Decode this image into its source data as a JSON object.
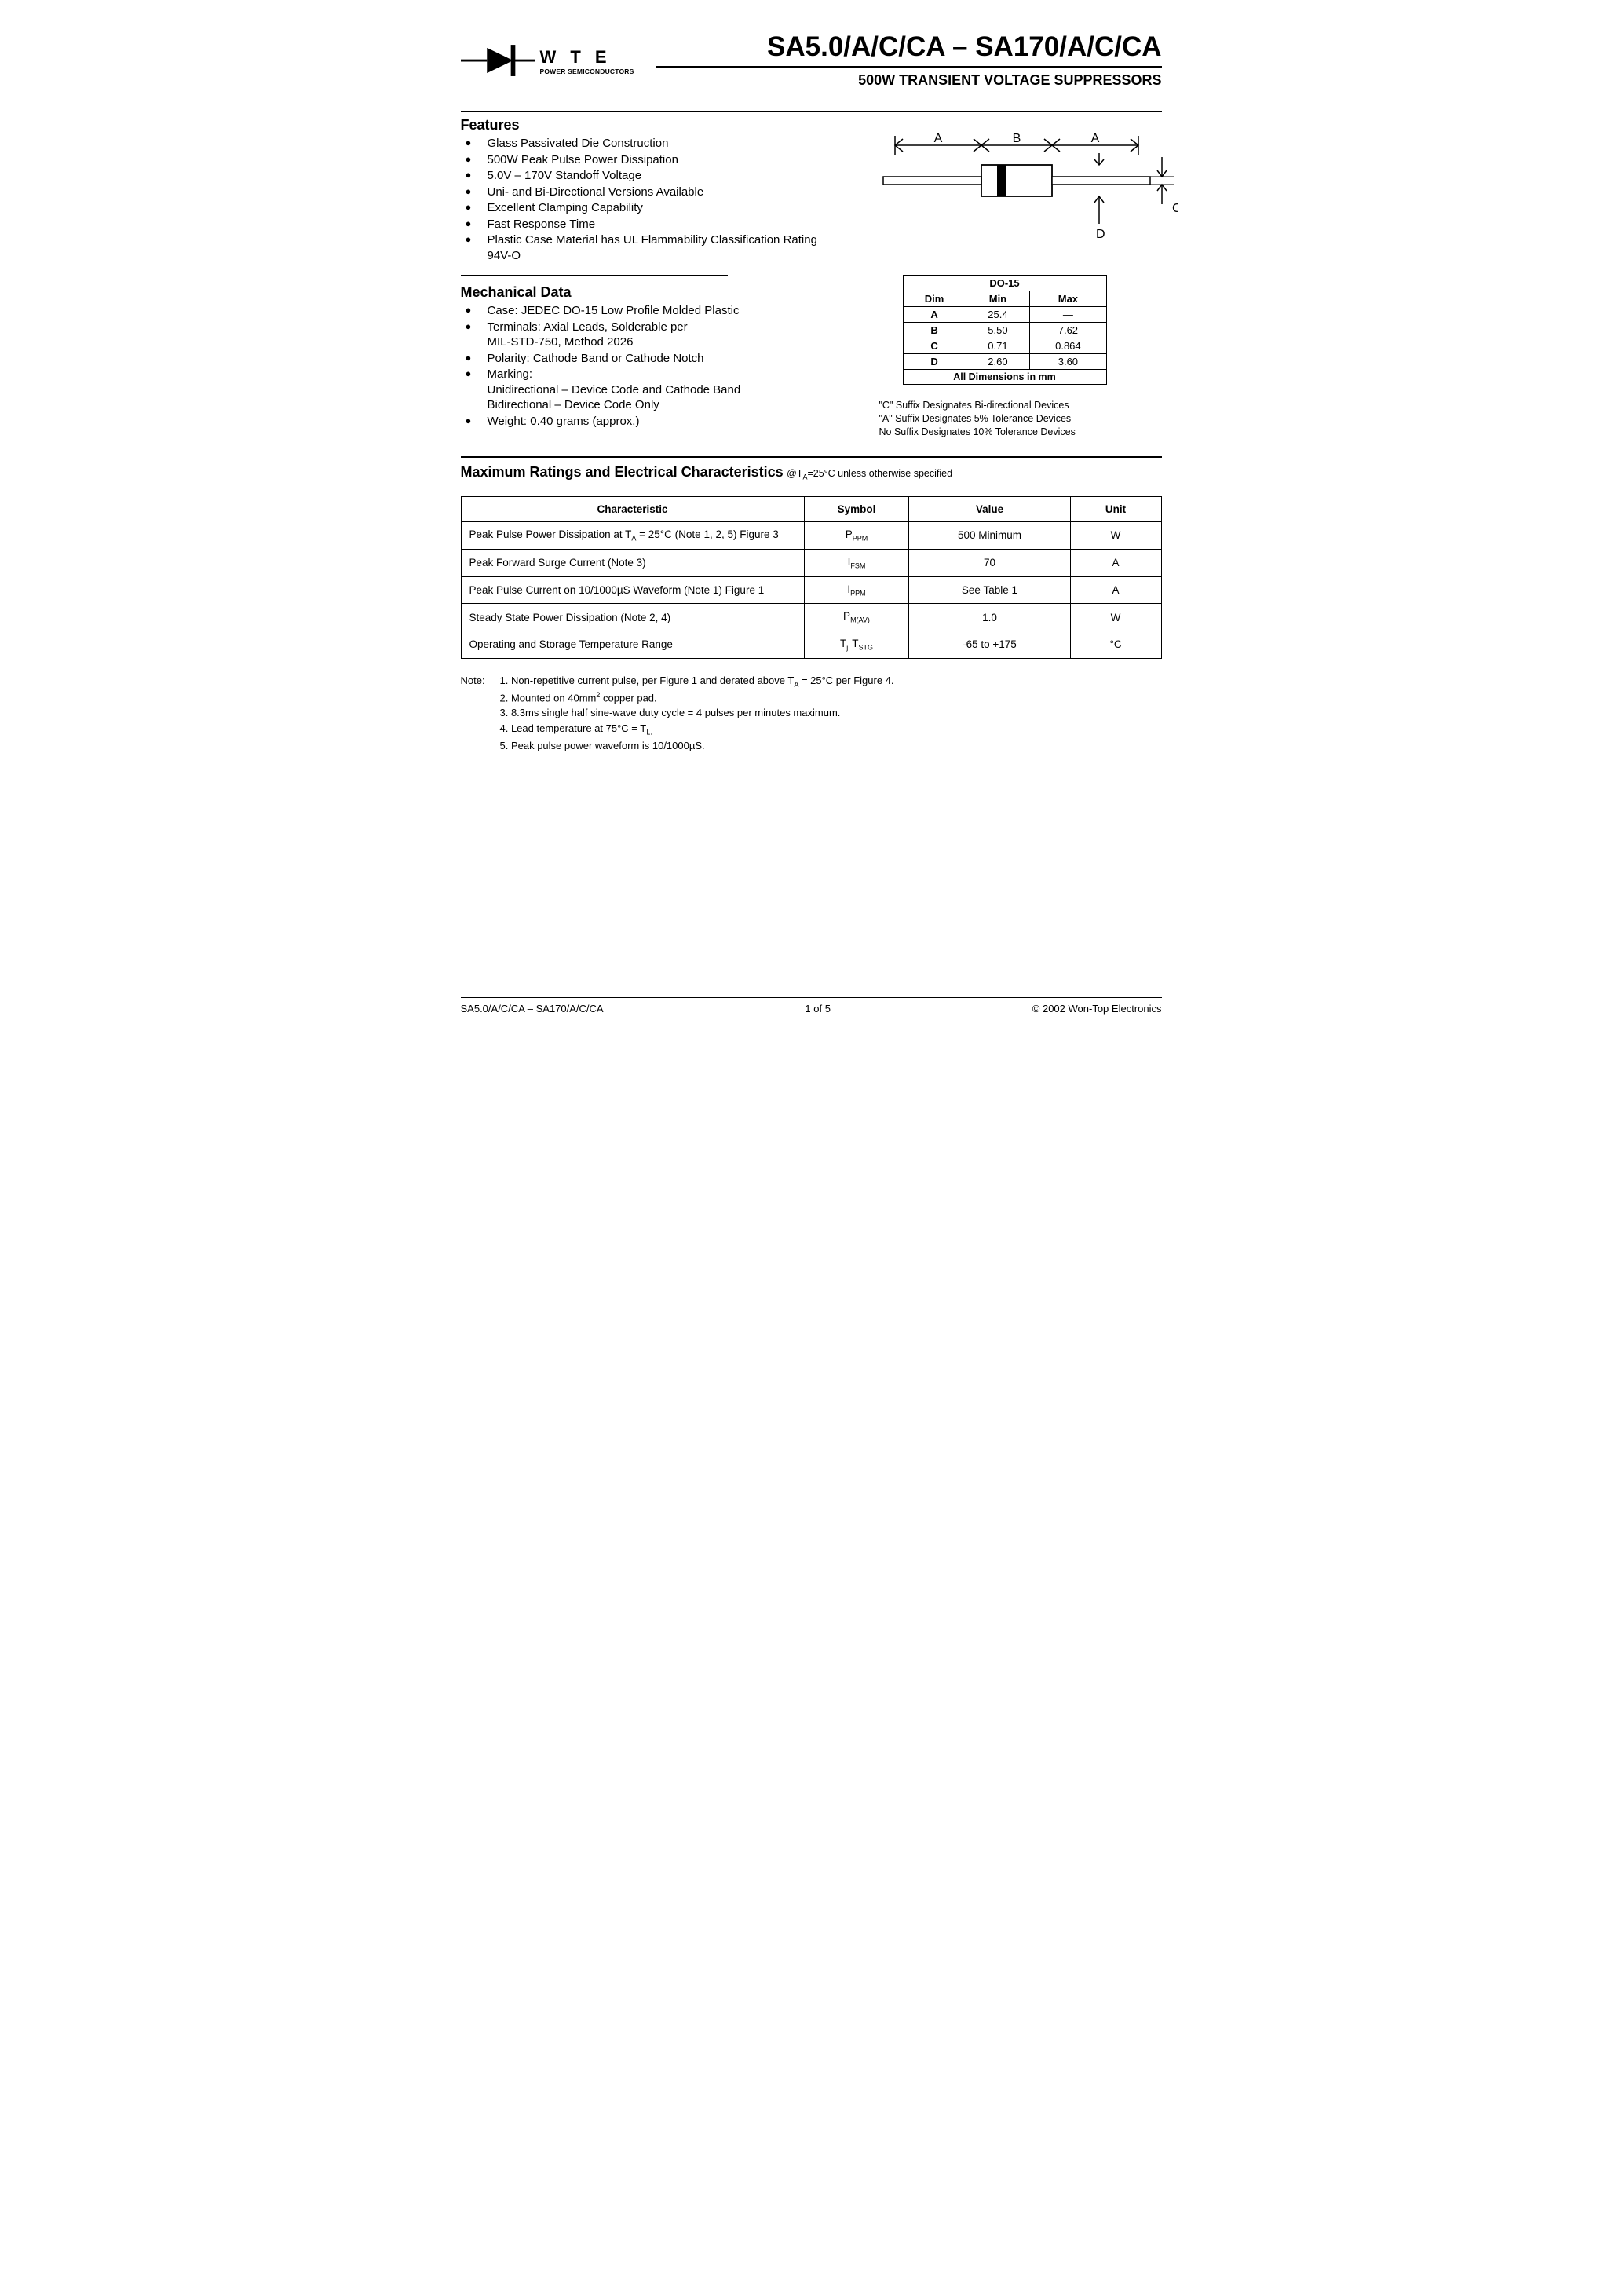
{
  "logo": {
    "wte": "W T E",
    "sub": "POWER SEMICONDUCTORS"
  },
  "title": "SA5.0/A/C/CA – SA170/A/C/CA",
  "subtitle": "500W TRANSIENT VOLTAGE SUPPRESSORS",
  "features": {
    "heading": "Features",
    "items": [
      "Glass Passivated Die Construction",
      "500W Peak Pulse Power Dissipation",
      "5.0V – 170V Standoff Voltage",
      "Uni- and Bi-Directional Versions Available",
      "Excellent Clamping Capability",
      "Fast Response Time",
      "Plastic Case Material has UL Flammability Classification Rating 94V-O"
    ]
  },
  "mechanical": {
    "heading": "Mechanical Data",
    "items": [
      "Case: JEDEC DO-15 Low Profile Molded Plastic",
      "Terminals: Axial Leads, Solderable per MIL-STD-750, Method 2026",
      "Polarity: Cathode Band or Cathode Notch",
      "Marking: Unidirectional – Device Code and Cathode Band Bidirectional – Device Code Only",
      "Weight: 0.40 grams (approx.)"
    ]
  },
  "package_diagram": {
    "labels": {
      "A": "A",
      "B": "B",
      "C": "C",
      "D": "D"
    },
    "stroke": "#000000",
    "fill_band": "#000000",
    "body_fill": "#ffffff"
  },
  "dim_table": {
    "title": "DO-15",
    "cols": [
      "Dim",
      "Min",
      "Max"
    ],
    "rows": [
      [
        "A",
        "25.4",
        "—"
      ],
      [
        "B",
        "5.50",
        "7.62"
      ],
      [
        "C",
        "0.71",
        "0.864"
      ],
      [
        "D",
        "2.60",
        "3.60"
      ]
    ],
    "footer": "All Dimensions in mm"
  },
  "suffix_notes": [
    "\"C\" Suffix Designates Bi-directional Devices",
    "\"A\" Suffix Designates 5% Tolerance Devices",
    "No Suffix Designates 10% Tolerance Devices"
  ],
  "maxratings": {
    "heading": "Maximum Ratings and Electrical Characteristics",
    "condition_prefix": " @T",
    "condition_sub": "A",
    "condition_rest": "=25°C unless otherwise specified",
    "cols": [
      "Characteristic",
      "Symbol",
      "Value",
      "Unit"
    ],
    "rows": [
      {
        "char": "Peak Pulse Power Dissipation at T",
        "char_sub": "A",
        "char_rest": " = 25°C (Note 1, 2, 5) Figure 3",
        "sym": "P",
        "sym_sub": "PPM",
        "val": "500 Minimum",
        "unit": "W"
      },
      {
        "char": "Peak Forward Surge Current (Note 3)",
        "char_sub": "",
        "char_rest": "",
        "sym": "I",
        "sym_sub": "FSM",
        "val": "70",
        "unit": "A"
      },
      {
        "char": "Peak Pulse Current on 10/1000µS Waveform (Note 1) Figure 1",
        "char_sub": "",
        "char_rest": "",
        "sym": "I",
        "sym_sub": "PPM",
        "val": "See Table 1",
        "unit": "A"
      },
      {
        "char": "Steady State Power Dissipation (Note 2, 4)",
        "char_sub": "",
        "char_rest": "",
        "sym": "P",
        "sym_sub": "M(AV)",
        "val": "1.0",
        "unit": "W"
      },
      {
        "char": "Operating and Storage Temperature Range",
        "char_sub": "",
        "char_rest": "",
        "sym": "T",
        "sym_sub": "j, ",
        "sym2": "T",
        "sym2_sub": "STG",
        "val": "-65 to +175",
        "unit": "°C"
      }
    ]
  },
  "notes": {
    "label": "Note:",
    "items": [
      {
        "n": "1.",
        "pre": "Non-repetitive current pulse, per Figure 1 and derated above T",
        "sub": "A",
        "post": " = 25°C per Figure 4."
      },
      {
        "n": "2.",
        "pre": "Mounted on 40mm",
        "sup": "2",
        "post": " copper pad."
      },
      {
        "n": "3.",
        "pre": "8.3ms single half sine-wave duty cycle = 4 pulses per minutes maximum.",
        "sub": "",
        "post": ""
      },
      {
        "n": "4.",
        "pre": "Lead temperature at 75°C = T",
        "sub": "L.",
        "post": ""
      },
      {
        "n": "5.",
        "pre": "Peak pulse power waveform is 10/1000µS.",
        "sub": "",
        "post": ""
      }
    ]
  },
  "footer": {
    "left": "SA5.0/A/C/CA – SA170/A/C/CA",
    "center": "1  of  5",
    "right": "© 2002 Won-Top Electronics"
  }
}
